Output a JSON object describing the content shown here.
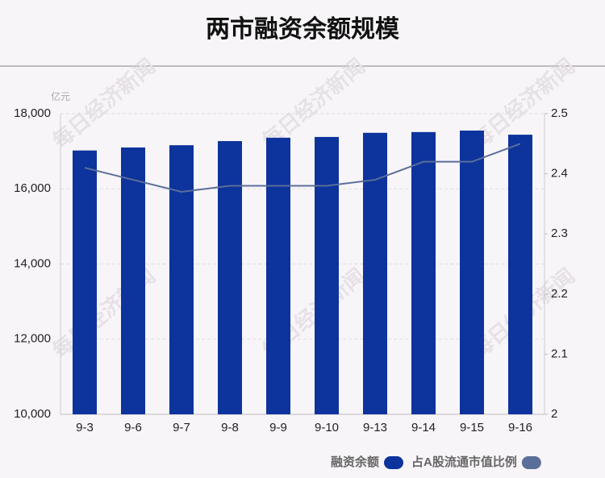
{
  "chart_data": {
    "type": "bar_line",
    "title": "两市融资余额规模",
    "y_unit": "亿元",
    "watermark": "每日经济新闻",
    "categories": [
      "9-3",
      "9-6",
      "9-7",
      "9-8",
      "9-9",
      "9-10",
      "9-13",
      "9-14",
      "9-15",
      "9-16"
    ],
    "series": [
      {
        "name": "融资余额",
        "type": "bar",
        "color": "#0d339c",
        "values": [
          17020,
          17100,
          17160,
          17270,
          17360,
          17380,
          17490,
          17510,
          17550,
          17440
        ]
      },
      {
        "name": "占A股流通市值比例",
        "type": "line",
        "axis": "y2",
        "color": "#5a6e9a",
        "values": [
          2.41,
          2.39,
          2.37,
          2.38,
          2.38,
          2.38,
          2.39,
          2.42,
          2.42,
          2.45
        ]
      }
    ],
    "ylim": [
      10000,
      18000
    ],
    "yticks": [
      {
        "value": 10000,
        "label": "10,000"
      },
      {
        "value": 12000,
        "label": "12,000"
      },
      {
        "value": 14000,
        "label": "14,000"
      },
      {
        "value": 16000,
        "label": "16,000"
      },
      {
        "value": 18000,
        "label": "18,000"
      }
    ],
    "y2lim": [
      2,
      2.5
    ],
    "y2ticks": [
      2,
      2.1,
      2.2,
      2.3,
      2.4,
      2.5
    ],
    "grid": true
  }
}
